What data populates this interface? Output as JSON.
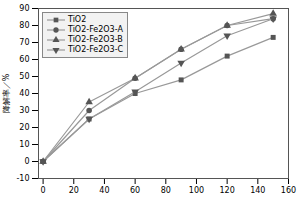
{
  "chart_data": {
    "type": "line",
    "ylabel": "降解率／%",
    "x": [
      0,
      30,
      60,
      90,
      120,
      150
    ],
    "series": [
      {
        "name": "TiO2",
        "color": "#555555",
        "marker": "square",
        "values": [
          0,
          25,
          40,
          48,
          62,
          73
        ]
      },
      {
        "name": "TiO2-Fe2O3-A",
        "color": "#555555",
        "marker": "circle",
        "values": [
          0,
          30,
          49,
          66,
          80,
          84
        ]
      },
      {
        "name": "TiO2-Fe2O3-B",
        "color": "#555555",
        "marker": "triangle-up",
        "values": [
          0,
          35,
          49,
          66,
          80,
          87
        ]
      },
      {
        "name": "TiO2-Fe2O3-C",
        "color": "#555555",
        "marker": "triangle-down",
        "values": [
          0,
          25,
          41,
          58,
          74,
          84
        ]
      }
    ],
    "color": "#999999",
    "xlim": [
      -3,
      160
    ],
    "xticks": [
      0,
      20,
      40,
      60,
      80,
      100,
      120,
      140,
      160
    ],
    "ylim": [
      -10,
      90
    ],
    "yticks": [
      -10,
      0,
      10,
      20,
      30,
      40,
      50,
      60,
      70,
      80,
      90
    ],
    "legend": "upper left",
    "grid": false
  }
}
